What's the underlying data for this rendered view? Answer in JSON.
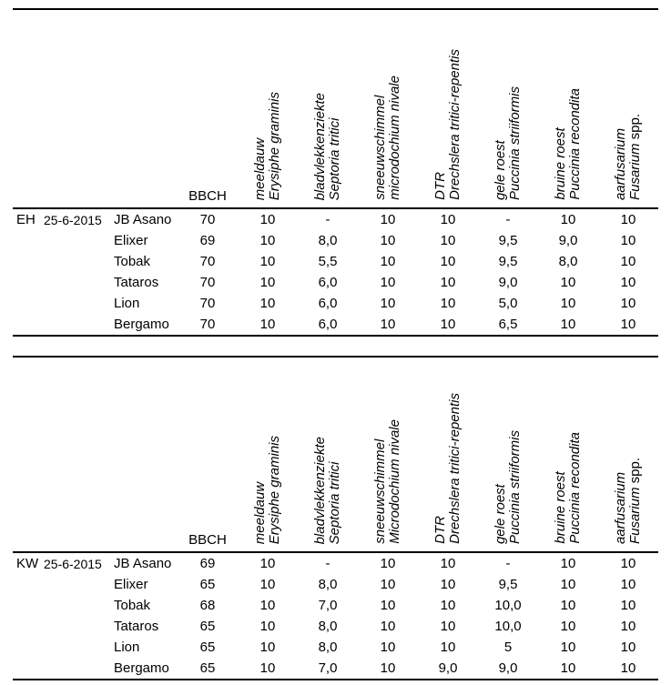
{
  "document": {
    "background": "#ffffff",
    "text_color": "#000000",
    "rule_color": "#000000"
  },
  "tables": [
    {
      "site_code": "EH",
      "date": "25-6-2015",
      "bbch_label": "BBCH",
      "disease_columns": [
        {
          "id": "meeldauw",
          "common": "meeldauw",
          "latin": "Erysiphe graminis",
          "suffix": ""
        },
        {
          "id": "bladvlekkenziekte",
          "common": "bladvlekkenziekte",
          "latin": "Septoria tritici",
          "suffix": ""
        },
        {
          "id": "sneeuwschimmel",
          "common": "sneeuwschimmel",
          "latin": "microdochium nivale",
          "suffix": ""
        },
        {
          "id": "dtr",
          "common": "DTR",
          "latin": "Drechslera tritici-repentis",
          "suffix": ""
        },
        {
          "id": "gele-roest",
          "common": "gele roest",
          "latin": "Puccinia striiformis",
          "suffix": ""
        },
        {
          "id": "bruine-roest",
          "common": "bruine roest",
          "latin": "Puccinia recondita",
          "suffix": ""
        },
        {
          "id": "aarfusarium",
          "common": "aarfusarium",
          "latin": "Fusarium",
          "suffix": " spp."
        }
      ],
      "rows": [
        {
          "code": "EH",
          "date": "25-6-2015",
          "variety": "JB Asano",
          "values": [
            "70",
            "10",
            "-",
            "10",
            "10",
            "-",
            "10",
            "10"
          ]
        },
        {
          "code": "",
          "date": "",
          "variety": "Elixer",
          "values": [
            "69",
            "10",
            "8,0",
            "10",
            "10",
            "9,5",
            "9,0",
            "10"
          ]
        },
        {
          "code": "",
          "date": "",
          "variety": "Tobak",
          "values": [
            "70",
            "10",
            "5,5",
            "10",
            "10",
            "9,5",
            "8,0",
            "10"
          ]
        },
        {
          "code": "",
          "date": "",
          "variety": "Tataros",
          "values": [
            "70",
            "10",
            "6,0",
            "10",
            "10",
            "9,0",
            "10",
            "10"
          ]
        },
        {
          "code": "",
          "date": "",
          "variety": "Lion",
          "values": [
            "70",
            "10",
            "6,0",
            "10",
            "10",
            "5,0",
            "10",
            "10"
          ]
        },
        {
          "code": "",
          "date": "",
          "variety": "Bergamo",
          "values": [
            "70",
            "10",
            "6,0",
            "10",
            "10",
            "6,5",
            "10",
            "10"
          ]
        }
      ]
    },
    {
      "site_code": "KW",
      "date": "25-6-2015",
      "bbch_label": "BBCH",
      "disease_columns": [
        {
          "id": "meeldauw",
          "common": "meeldauw",
          "latin": "Erysiphe graminis",
          "suffix": ""
        },
        {
          "id": "bladvlekkenziekte",
          "common": "bladvlekkenziekte",
          "latin": "Septoria tritici",
          "suffix": ""
        },
        {
          "id": "sneeuwschimmel",
          "common": "sneeuwschimmel",
          "latin": "Microdochium nivale",
          "suffix": ""
        },
        {
          "id": "dtr",
          "common": "DTR",
          "latin": "Drechslera tritici-repentis",
          "suffix": ""
        },
        {
          "id": "gele-roest",
          "common": "gele roest",
          "latin": "Puccinia striiformis",
          "suffix": ""
        },
        {
          "id": "bruine-roest",
          "common": "bruine roest",
          "latin": "Puccinia recondita",
          "suffix": ""
        },
        {
          "id": "aarfusarium",
          "common": "aarfusarium",
          "latin": "Fusarium",
          "suffix": " spp."
        }
      ],
      "rows": [
        {
          "code": "KW",
          "date": "25-6-2015",
          "variety": "JB Asano",
          "values": [
            "69",
            "10",
            "-",
            "10",
            "10",
            "-",
            "10",
            "10"
          ]
        },
        {
          "code": "",
          "date": "",
          "variety": "Elixer",
          "values": [
            "65",
            "10",
            "8,0",
            "10",
            "10",
            "9,5",
            "10",
            "10"
          ]
        },
        {
          "code": "",
          "date": "",
          "variety": "Tobak",
          "values": [
            "68",
            "10",
            "7,0",
            "10",
            "10",
            "10,0",
            "10",
            "10"
          ]
        },
        {
          "code": "",
          "date": "",
          "variety": "Tataros",
          "values": [
            "65",
            "10",
            "8,0",
            "10",
            "10",
            "10,0",
            "10",
            "10"
          ]
        },
        {
          "code": "",
          "date": "",
          "variety": "Lion",
          "values": [
            "65",
            "10",
            "8,0",
            "10",
            "10",
            "5",
            "10",
            "10"
          ]
        },
        {
          "code": "",
          "date": "",
          "variety": "Bergamo",
          "values": [
            "65",
            "10",
            "7,0",
            "10",
            "9,0",
            "9,0",
            "10",
            "10"
          ]
        }
      ]
    }
  ]
}
